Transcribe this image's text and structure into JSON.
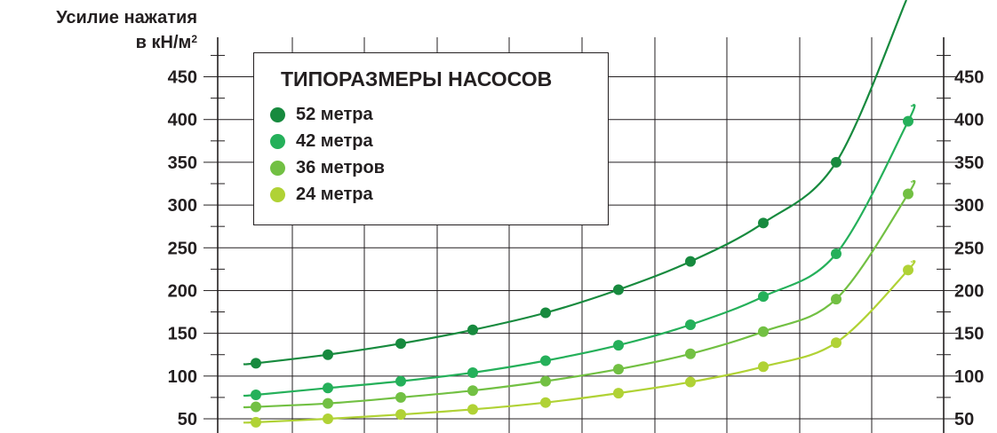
{
  "chart_data": {
    "type": "line",
    "ylabel_line1": "Усилие нажатия",
    "ylabel_line2": "в кН/м",
    "ylabel_sup": "2",
    "yticks": [
      "50",
      "100",
      "150",
      "200",
      "250",
      "300",
      "350",
      "400",
      "450"
    ],
    "ylim": [
      40,
      500
    ],
    "grid": true,
    "legend": {
      "title": "ТИПОРАЗМЕРЫ НАСОСОВ",
      "placement": "top-left"
    },
    "series": [
      {
        "name": "52 метра",
        "color": "#178a3e",
        "values": [
          115,
          125,
          138,
          154,
          174,
          201,
          234,
          279,
          350
        ]
      },
      {
        "name": "42 метра",
        "color": "#25b05a",
        "values": [
          78,
          86,
          94,
          104,
          118,
          136,
          160,
          193,
          243,
          398
        ]
      },
      {
        "name": "36 метров",
        "color": "#72c043",
        "values": [
          64,
          68,
          75,
          83,
          94,
          108,
          126,
          152,
          190,
          313
        ]
      },
      {
        "name": "24 метра",
        "color": "#b0d235",
        "values": [
          46,
          50,
          55,
          61,
          69,
          80,
          93,
          111,
          139,
          224
        ]
      }
    ]
  }
}
